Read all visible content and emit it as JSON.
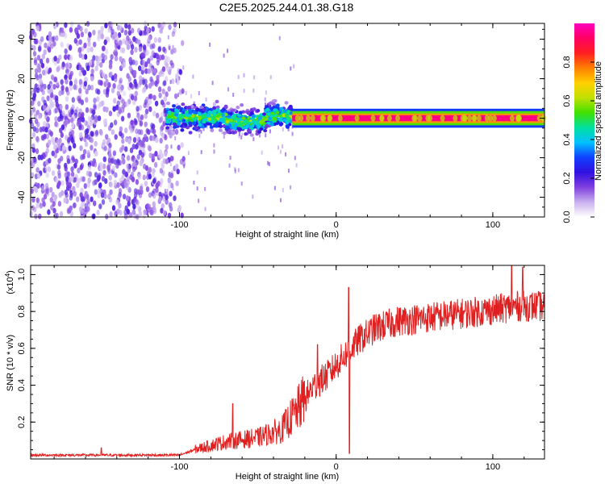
{
  "figure": {
    "title": "C2E5.2025.244.01.38.G18"
  },
  "chart_data": [
    {
      "type": "heatmap",
      "title": "C2E5.2025.244.01.38.G18",
      "xlabel": "Height of straight line (km)",
      "ylabel": "Frequency (Hz)",
      "xlim": [
        -195,
        133
      ],
      "ylim": [
        -50,
        48
      ],
      "xticks": [
        -100,
        0,
        100
      ],
      "xtick_labels": [
        "-100",
        "0",
        "100"
      ],
      "yticks": [
        -40,
        -20,
        0,
        20,
        40
      ],
      "ytick_labels": [
        "-40",
        "-20",
        "0",
        "20",
        "40"
      ],
      "colorbar": {
        "label": "Normalized spectral amplitude",
        "range": [
          0,
          1
        ],
        "ticks": [
          0,
          0.2,
          0.4,
          0.6,
          0.8
        ],
        "tick_labels": [
          "0.0",
          "0.2",
          "0.4",
          "0.6",
          "0.8"
        ],
        "colors": [
          "#ffffff",
          "#c8b0ee",
          "#8040e0",
          "#3010e0",
          "#1040ff",
          "#00c0ff",
          "#00e0a0",
          "#40e000",
          "#c0e000",
          "#ffd000",
          "#ff8000",
          "#ff2020",
          "#ff0060",
          "#ff00c0"
        ]
      },
      "regions": [
        {
          "name": "noise",
          "x_range": [
            -195,
            -95
          ],
          "freq_spread": 48,
          "amplitude": 0.15
        },
        {
          "name": "turbulent",
          "x_range": [
            -108,
            -28
          ],
          "freq_center": 0,
          "freq_spread": 5,
          "amplitude": 0.45
        },
        {
          "name": "steady_tone",
          "x_range": [
            -28,
            133
          ],
          "freq_center": 0,
          "freq_spread": 1.5,
          "amplitude": 0.95
        }
      ]
    },
    {
      "type": "line",
      "xlabel": "Height of straight line (km)",
      "ylabel": "SNR (10 * v/v)",
      "y_scale_label": "(x10",
      "y_scale_exp": "4",
      "y_scale_suffix": ")",
      "xlim": [
        -195,
        133
      ],
      "ylim": [
        0,
        1.05
      ],
      "xticks": [
        -100,
        0,
        100
      ],
      "xtick_labels": [
        "-100",
        "0",
        "100"
      ],
      "yticks": [
        0.2,
        0.4,
        0.6,
        0.8,
        1.0
      ],
      "ytick_labels": [
        "0.2",
        "0.4",
        "0.6",
        "0.8",
        "1.0"
      ],
      "color": "#e02020",
      "trend": {
        "x": [
          -195,
          -100,
          -90,
          -70,
          -50,
          -35,
          -25,
          -15,
          -5,
          5,
          15,
          25,
          40,
          60,
          80,
          100,
          115,
          133
        ],
        "y": [
          0.02,
          0.02,
          0.05,
          0.09,
          0.11,
          0.15,
          0.25,
          0.38,
          0.45,
          0.55,
          0.64,
          0.7,
          0.74,
          0.76,
          0.78,
          0.8,
          0.82,
          0.82
        ]
      },
      "peaks": [
        {
          "x": -150,
          "y": 0.06
        },
        {
          "x": -66,
          "y": 0.3
        },
        {
          "x": -12,
          "y": 0.62
        },
        {
          "x": 8,
          "y": 0.93
        },
        {
          "x": 8.5,
          "y": 0.03
        },
        {
          "x": 112,
          "y": 1.05
        },
        {
          "x": 119,
          "y": 1.04
        }
      ]
    }
  ]
}
